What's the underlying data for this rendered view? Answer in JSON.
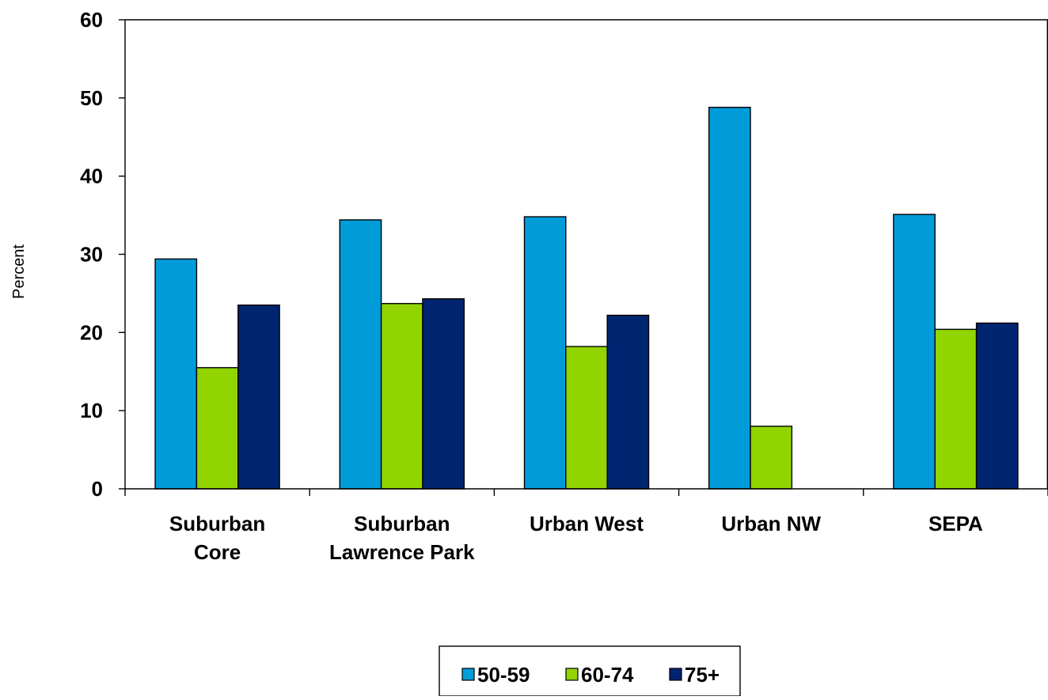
{
  "chart_data": {
    "type": "bar",
    "categories": [
      [
        "Suburban",
        "Core"
      ],
      [
        "Suburban",
        "Lawrence Park"
      ],
      [
        "Urban West"
      ],
      [
        "Urban NW"
      ],
      [
        "SEPA"
      ]
    ],
    "series": [
      {
        "name": "50-59",
        "color": "#009CD9",
        "values": [
          29.4,
          34.4,
          34.8,
          48.8,
          35.1
        ]
      },
      {
        "name": "60-74",
        "color": "#92D400",
        "values": [
          15.5,
          23.7,
          18.2,
          8.0,
          20.4
        ]
      },
      {
        "name": "75+",
        "color": "#002570",
        "values": [
          23.5,
          24.3,
          22.2,
          null,
          21.2
        ]
      }
    ],
    "ylabel": "Percent",
    "ylim": [
      0,
      60
    ],
    "yticks": [
      0,
      10,
      20,
      30,
      40,
      50,
      60
    ],
    "legend_position": "bottom-center",
    "grid": false
  }
}
